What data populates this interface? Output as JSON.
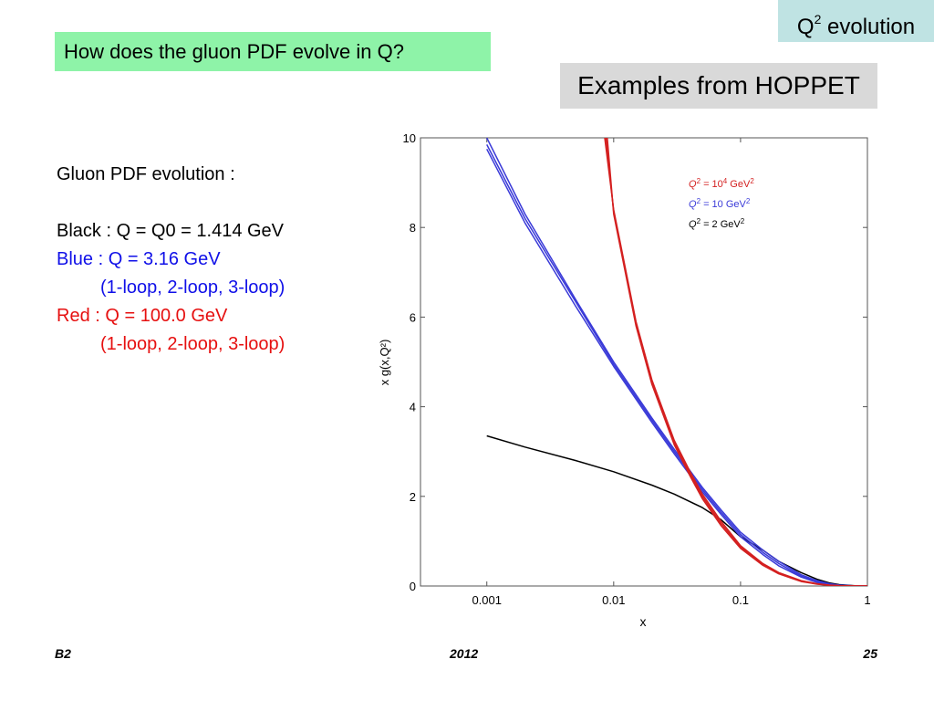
{
  "header": {
    "tag_prefix": "Q",
    "tag_superscript": "2",
    "tag_suffix": " evolution",
    "question": "How does the gluon PDF evolve in Q?",
    "examples": "Examples from HOPPET"
  },
  "notes": {
    "heading": "Gluon PDF evolution :",
    "black": "Black : Q = Q0 = 1.414 GeV",
    "blue": "Blue : Q = 3.16 GeV",
    "blue_sub": "(1-loop, 2-loop, 3-loop)",
    "red": "Red : Q = 100.0 GeV",
    "red_sub": "(1-loop, 2-loop, 3-loop)"
  },
  "footer": {
    "left": "B2",
    "center": "2012",
    "right": "25"
  },
  "colors": {
    "red": "#d42020",
    "blue": "#3a3ad8",
    "black": "#000000"
  },
  "chart_data": {
    "type": "line",
    "title": "",
    "xlabel": "x",
    "ylabel": "x g(x,Q²)",
    "xscale": "log",
    "xlim": [
      0.0003,
      1
    ],
    "ylim": [
      0,
      10
    ],
    "xticks": [
      0.001,
      0.01,
      0.1,
      1
    ],
    "xtick_labels": [
      "0.001",
      "0.01",
      "0.1",
      "1"
    ],
    "yticks": [
      0,
      2,
      4,
      6,
      8,
      10
    ],
    "ytick_labels": [
      "0",
      "2",
      "4",
      "6",
      "8",
      "10"
    ],
    "legend_position": "top-right",
    "legend": [
      {
        "prefix": "Q",
        "sup1": "2",
        "mid": " = 10",
        "sup2": "4",
        "post": " GeV",
        "sup3": "2",
        "color": "#d42020"
      },
      {
        "prefix": "Q",
        "sup1": "2",
        "mid": " = 10 GeV",
        "sup2": "2",
        "post": "",
        "sup3": "",
        "color": "#3a3ad8"
      },
      {
        "prefix": "Q",
        "sup1": "2",
        "mid": " = 2 GeV",
        "sup2": "2",
        "post": "",
        "sup3": "",
        "color": "#000000"
      }
    ],
    "series": [
      {
        "color": "#000000",
        "x": [
          0.001,
          0.002,
          0.005,
          0.01,
          0.02,
          0.03,
          0.05,
          0.07,
          0.1,
          0.15,
          0.2,
          0.3,
          0.4,
          0.5,
          0.6,
          0.8,
          1.0
        ],
        "y": [
          3.35,
          3.1,
          2.8,
          2.55,
          2.25,
          2.05,
          1.75,
          1.48,
          1.1,
          0.8,
          0.55,
          0.3,
          0.15,
          0.07,
          0.03,
          0.005,
          0
        ]
      },
      {
        "color": "#3a3ad8",
        "x": [
          0.001,
          0.002,
          0.005,
          0.01,
          0.02,
          0.03,
          0.05,
          0.07,
          0.1,
          0.15,
          0.2,
          0.3,
          0.4,
          0.5,
          0.6,
          0.8,
          1.0
        ],
        "y": [
          10.0,
          8.3,
          6.4,
          5.0,
          3.75,
          3.05,
          2.2,
          1.7,
          1.2,
          0.8,
          0.55,
          0.25,
          0.12,
          0.05,
          0.02,
          0.003,
          0
        ]
      },
      {
        "color": "#3a3ad8",
        "x": [
          0.001,
          0.002,
          0.005,
          0.01,
          0.02,
          0.03,
          0.05,
          0.07,
          0.1,
          0.15,
          0.2,
          0.3,
          0.4,
          0.5,
          0.6,
          0.8,
          1.0
        ],
        "y": [
          9.85,
          8.2,
          6.35,
          4.95,
          3.7,
          3.0,
          2.15,
          1.65,
          1.15,
          0.75,
          0.5,
          0.22,
          0.1,
          0.04,
          0.015,
          0.002,
          0
        ]
      },
      {
        "color": "#3a3ad8",
        "x": [
          0.001,
          0.002,
          0.005,
          0.01,
          0.02,
          0.03,
          0.05,
          0.07,
          0.1,
          0.15,
          0.2,
          0.3,
          0.4,
          0.5,
          0.6,
          0.8,
          1.0
        ],
        "y": [
          9.75,
          8.1,
          6.25,
          4.9,
          3.65,
          2.95,
          2.1,
          1.6,
          1.1,
          0.7,
          0.45,
          0.2,
          0.08,
          0.03,
          0.01,
          0.001,
          0
        ]
      },
      {
        "color": "#d42020",
        "x": [
          0.0085,
          0.01,
          0.015,
          0.02,
          0.03,
          0.04,
          0.05,
          0.07,
          0.1,
          0.15,
          0.2,
          0.3,
          0.4,
          0.5,
          0.6,
          0.8,
          1.0
        ],
        "y": [
          10.0,
          8.4,
          5.9,
          4.6,
          3.25,
          2.55,
          2.05,
          1.45,
          0.9,
          0.5,
          0.3,
          0.12,
          0.05,
          0.02,
          0.008,
          0.001,
          0
        ]
      },
      {
        "color": "#d42020",
        "x": [
          0.0087,
          0.01,
          0.015,
          0.02,
          0.03,
          0.04,
          0.05,
          0.07,
          0.1,
          0.15,
          0.2,
          0.3,
          0.4,
          0.5,
          0.6,
          0.8,
          1.0
        ],
        "y": [
          10.0,
          8.35,
          5.85,
          4.55,
          3.2,
          2.5,
          2.0,
          1.4,
          0.87,
          0.48,
          0.28,
          0.11,
          0.045,
          0.018,
          0.007,
          0.001,
          0
        ]
      },
      {
        "color": "#d42020",
        "x": [
          0.0089,
          0.01,
          0.015,
          0.02,
          0.03,
          0.04,
          0.05,
          0.07,
          0.1,
          0.15,
          0.2,
          0.3,
          0.4,
          0.5,
          0.6,
          0.8,
          1.0
        ],
        "y": [
          10.0,
          8.3,
          5.8,
          4.5,
          3.15,
          2.45,
          1.95,
          1.35,
          0.84,
          0.46,
          0.27,
          0.1,
          0.04,
          0.016,
          0.006,
          0.001,
          0
        ]
      }
    ]
  }
}
